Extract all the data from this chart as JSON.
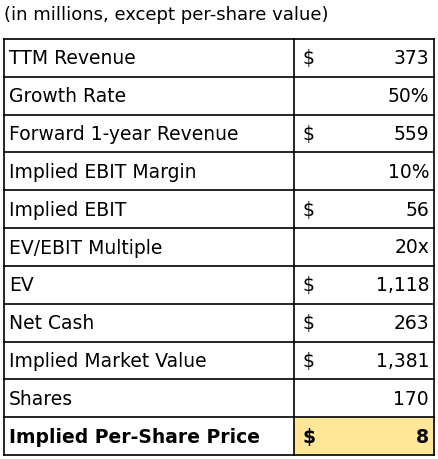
{
  "title": "(in millions, except per-share value)",
  "title_fontsize": 13.0,
  "rows": [
    {
      "label": "TTM Revenue",
      "dollar": "$",
      "value": "373",
      "bold": false,
      "highlight": false
    },
    {
      "label": "Growth Rate",
      "dollar": "",
      "value": "50%",
      "bold": false,
      "highlight": false
    },
    {
      "label": "Forward 1-year Revenue",
      "dollar": "$",
      "value": "559",
      "bold": false,
      "highlight": false
    },
    {
      "label": "Implied EBIT Margin",
      "dollar": "",
      "value": "10%",
      "bold": false,
      "highlight": false
    },
    {
      "label": "Implied EBIT",
      "dollar": "$",
      "value": "56",
      "bold": false,
      "highlight": false
    },
    {
      "label": "EV/EBIT Multiple",
      "dollar": "",
      "value": "20x",
      "bold": false,
      "highlight": false
    },
    {
      "label": "EV",
      "dollar": "$",
      "value": "1,118",
      "bold": false,
      "highlight": false
    },
    {
      "label": "Net Cash",
      "dollar": "$",
      "value": "263",
      "bold": false,
      "highlight": false
    },
    {
      "label": "Implied Market Value",
      "dollar": "$",
      "value": "1,381",
      "bold": false,
      "highlight": false
    },
    {
      "label": "Shares",
      "dollar": "",
      "value": "170",
      "bold": false,
      "highlight": false
    },
    {
      "label": "Implied Per-Share Price",
      "dollar": "$",
      "value": "8",
      "bold": true,
      "highlight": true
    }
  ],
  "col_split": 0.675,
  "border_color": "#000000",
  "highlight_color": "#FFE699",
  "text_color": "#000000",
  "background_color": "#ffffff",
  "label_fontsize": 13.5,
  "value_fontsize": 13.5,
  "lw": 1.2
}
